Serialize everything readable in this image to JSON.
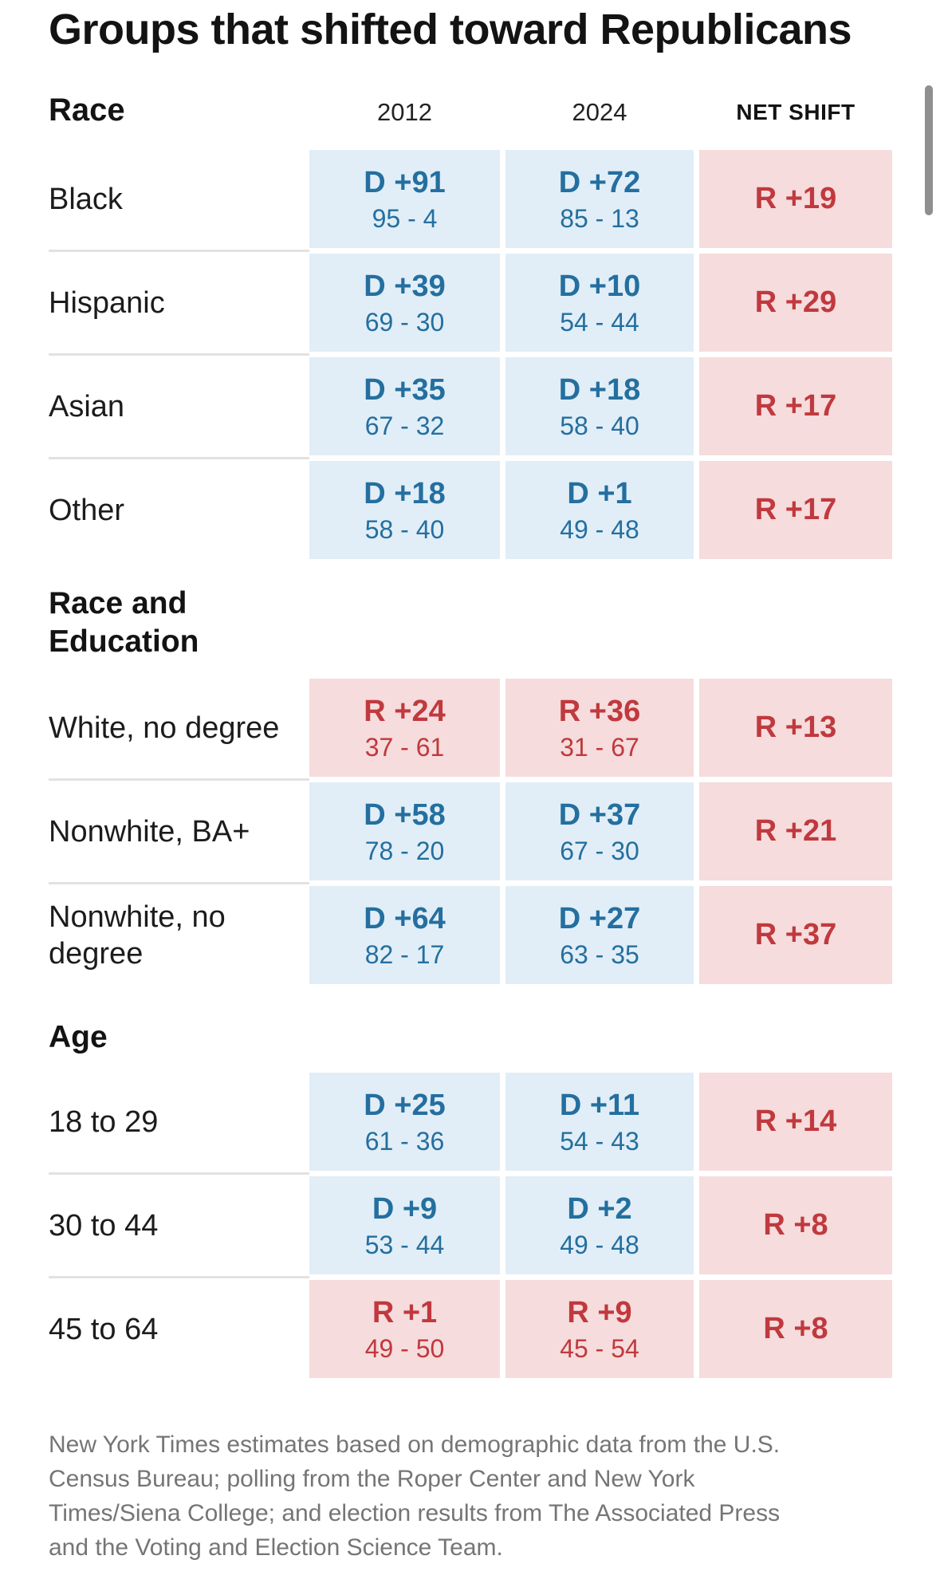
{
  "chart_data": {
    "type": "table",
    "title": "Groups that shifted toward Republicans",
    "columns": [
      "2012",
      "2024",
      "NET SHIFT"
    ],
    "sections": [
      {
        "name": "Race",
        "rows": [
          {
            "group": "Black",
            "c2012_margin": "D +91",
            "c2012_split": "95 - 4",
            "c2024_margin": "D +72",
            "c2024_split": "85 - 13",
            "net": "R +19"
          },
          {
            "group": "Hispanic",
            "c2012_margin": "D +39",
            "c2012_split": "69 - 30",
            "c2024_margin": "D +10",
            "c2024_split": "54 - 44",
            "net": "R +29"
          },
          {
            "group": "Asian",
            "c2012_margin": "D +35",
            "c2012_split": "67 - 32",
            "c2024_margin": "D +18",
            "c2024_split": "58 - 40",
            "net": "R +17"
          },
          {
            "group": "Other",
            "c2012_margin": "D +18",
            "c2012_split": "58 - 40",
            "c2024_margin": "D +1",
            "c2024_split": "49 - 48",
            "net": "R +17"
          }
        ]
      },
      {
        "name": "Race and Education",
        "rows": [
          {
            "group": "White, no degree",
            "c2012_margin": "R +24",
            "c2012_split": "37 - 61",
            "c2024_margin": "R +36",
            "c2024_split": "31 - 67",
            "net": "R +13"
          },
          {
            "group": "Nonwhite, BA+",
            "c2012_margin": "D +58",
            "c2012_split": "78 - 20",
            "c2024_margin": "D +37",
            "c2024_split": "67 - 30",
            "net": "R +21"
          },
          {
            "group": "Nonwhite, no degree",
            "c2012_margin": "D +64",
            "c2012_split": "82 - 17",
            "c2024_margin": "D +27",
            "c2024_split": "63 - 35",
            "net": "R +37"
          }
        ]
      },
      {
        "name": "Age",
        "rows": [
          {
            "group": "18 to 29",
            "c2012_margin": "D +25",
            "c2012_split": "61 - 36",
            "c2024_margin": "D +11",
            "c2024_split": "54 - 43",
            "net": "R +14"
          },
          {
            "group": "30 to 44",
            "c2012_margin": "D +9",
            "c2012_split": "53 - 44",
            "c2024_margin": "D +2",
            "c2024_split": "49 - 48",
            "net": "R +8"
          },
          {
            "group": "45 to 64",
            "c2012_margin": "R +1",
            "c2012_split": "49 - 50",
            "c2024_margin": "R +9",
            "c2024_split": "45 - 54",
            "net": "R +8"
          }
        ]
      }
    ],
    "footnote": "New York Times estimates based on demographic data from the U.S. Census Bureau; polling from the Roper Center and New York Times/Siena College; and election results from The Associated Press and the Voting and Election Science Team.",
    "layout": {
      "grid": "off",
      "legend": "none"
    }
  },
  "colors": {
    "dem_text": "#246f9f",
    "dem_bg": "#e1eef7",
    "rep_text": "#c0393e",
    "rep_bg": "#f6dcdc",
    "divider": "#e2e2e2",
    "footnote_text": "#757575"
  }
}
